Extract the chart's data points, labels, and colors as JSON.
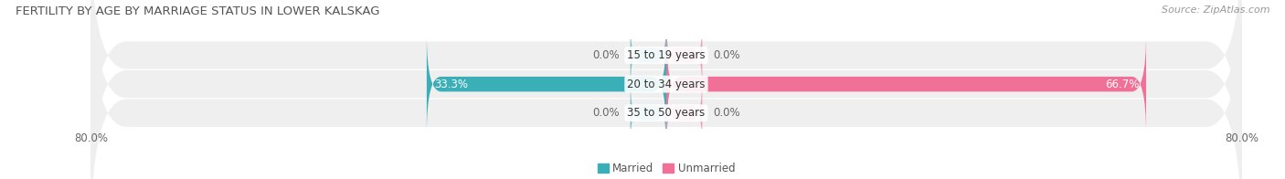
{
  "title": "FERTILITY BY AGE BY MARRIAGE STATUS IN LOWER KALSKAG",
  "source": "Source: ZipAtlas.com",
  "categories": [
    "15 to 19 years",
    "20 to 34 years",
    "35 to 50 years"
  ],
  "married_values": [
    0.0,
    33.3,
    0.0
  ],
  "unmarried_values": [
    0.0,
    66.7,
    0.0
  ],
  "married_color": "#3BAFB8",
  "unmarried_color": "#F07098",
  "row_bg_color": "#EFEFEF",
  "row_bg_color_alt": "#E8E8E8",
  "xlim_left": -80.0,
  "xlim_right": 80.0,
  "title_fontsize": 9.5,
  "source_fontsize": 8,
  "label_fontsize": 8.5,
  "category_fontsize": 8.5,
  "bar_height": 0.52,
  "background_color": "#FFFFFF",
  "legend_labels": [
    "Married",
    "Unmarried"
  ],
  "value_color_inside": "#FFFFFF",
  "value_color_outside": "#666666",
  "small_bar_size": 5.0
}
